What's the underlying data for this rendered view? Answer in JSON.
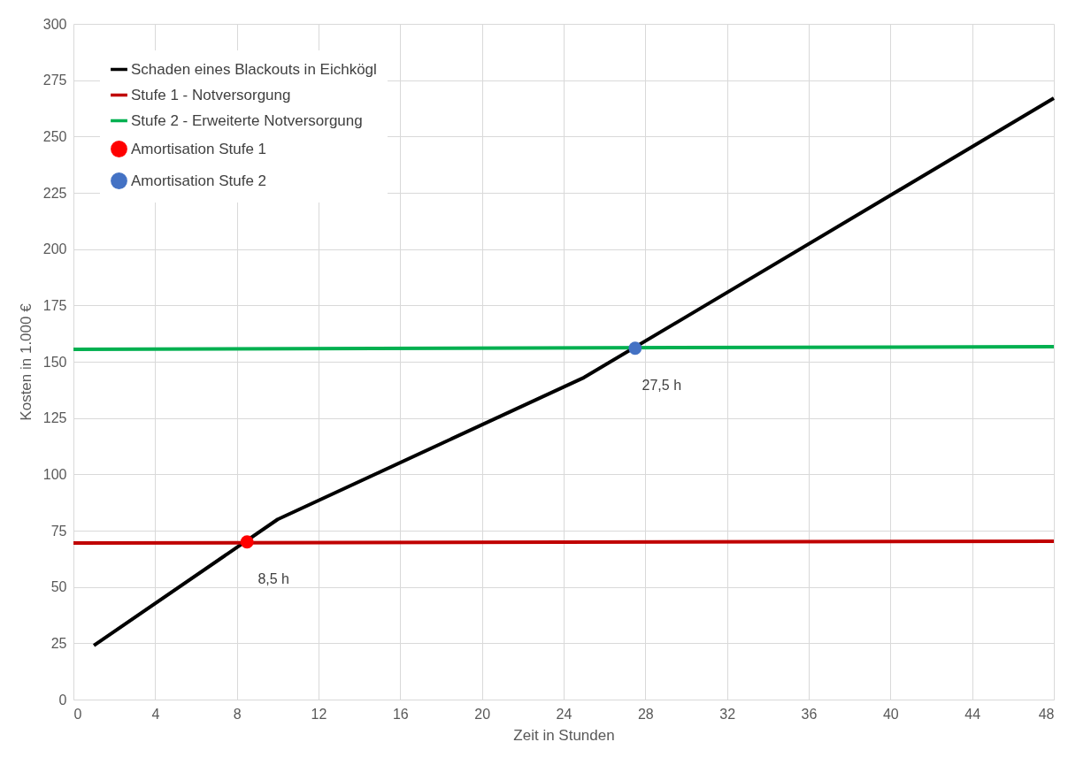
{
  "chart_data": {
    "type": "line",
    "xlabel": "Zeit in Stunden",
    "ylabel": "Kosten in 1.000 €",
    "xlim": [
      0,
      48
    ],
    "xticks": [
      0,
      4,
      8,
      12,
      16,
      20,
      24,
      28,
      32,
      36,
      40,
      44,
      48
    ],
    "ylim": [
      0,
      300
    ],
    "yticks": [
      0,
      25,
      50,
      75,
      100,
      125,
      150,
      175,
      200,
      225,
      250,
      275,
      300
    ],
    "grid": true,
    "legend": "top left",
    "series": [
      {
        "name": "Schaden eines Blackouts in Eichkögl",
        "color": "#000000",
        "x": [
          1,
          10,
          25,
          48
        ],
        "values": [
          24,
          80,
          143,
          267
        ]
      },
      {
        "name": "Stufe 1 - Notversorgung",
        "color": "#c00000",
        "x": [
          0,
          48
        ],
        "values": [
          69.5,
          70.3
        ]
      },
      {
        "name": "Stufe 2 - Erweiterte Notversorgung",
        "color": "#00b050",
        "x": [
          0,
          48
        ],
        "values": [
          155.5,
          156.7
        ]
      },
      {
        "name": "Amortisation Stufe 1",
        "color": "#ff0000",
        "type": "scatter",
        "x": [
          8.5
        ],
        "values": [
          70
        ]
      },
      {
        "name": "Amortisation Stufe 2",
        "color": "#4472c4",
        "type": "scatter",
        "x": [
          27.5
        ],
        "values": [
          156
        ]
      }
    ],
    "annotations": [
      {
        "text": "8,5 h",
        "x": 8.5,
        "y": 70
      },
      {
        "text": "27,5 h",
        "x": 27.5,
        "y": 156
      }
    ]
  }
}
